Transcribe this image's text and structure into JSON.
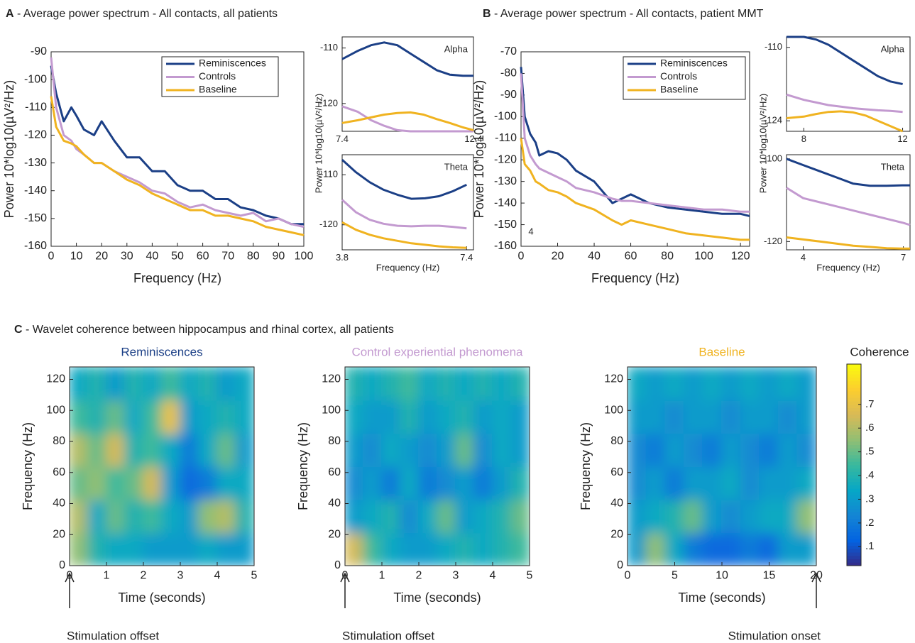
{
  "chart_data": [
    {
      "type": "line",
      "panel": "A",
      "section_title": "- Average power spectrum - All contacts, all patients",
      "xlabel": "Frequency (Hz)",
      "ylabel": "Power 10*log10(µV²/Hz)",
      "xlim": [
        0,
        100
      ],
      "xticks": [
        0,
        10,
        20,
        30,
        40,
        50,
        60,
        70,
        80,
        90,
        100
      ],
      "ylim": [
        -160,
        -90
      ],
      "yticks": [
        -90,
        -100,
        -110,
        -120,
        -130,
        -140,
        -150,
        -160
      ],
      "x": [
        0,
        2,
        5,
        8,
        10,
        13,
        17,
        20,
        25,
        30,
        35,
        40,
        45,
        50,
        55,
        60,
        65,
        70,
        75,
        80,
        85,
        90,
        95,
        100
      ],
      "series": [
        {
          "name": "Reminiscences",
          "color": "#1b3f86",
          "values": [
            -95,
            -105,
            -115,
            -110,
            -113,
            -118,
            -120,
            -115,
            -122,
            -128,
            -128,
            -133,
            -133,
            -138,
            -140,
            -140,
            -143,
            -143,
            -146,
            -147,
            -149,
            -150,
            -152,
            -152
          ]
        },
        {
          "name": "Controls",
          "color": "#c39ad0",
          "values": [
            -92,
            -110,
            -120,
            -122,
            -125,
            -127,
            -130,
            -130,
            -133,
            -135,
            -137,
            -140,
            -141,
            -144,
            -146,
            -145,
            -147,
            -148,
            -149,
            -148,
            -151,
            -150,
            -152,
            -153
          ]
        },
        {
          "name": "Baseline",
          "color": "#f0b320",
          "values": [
            -106,
            -117,
            -122,
            -123,
            -124,
            -127,
            -130,
            -130,
            -133,
            -136,
            -138,
            -141,
            -143,
            -145,
            -147,
            -147,
            -149,
            -149,
            -150,
            -151,
            -153,
            -154,
            -155,
            -156
          ]
        }
      ]
    },
    {
      "type": "line",
      "annotation": "Alpha",
      "ylabel": "Power 10*log10(µV²/Hz)",
      "xlim": [
        7.4,
        12.4
      ],
      "xticks": [
        7.4,
        12.4
      ],
      "ylim": [
        -125,
        -108
      ],
      "yticks": [
        -110,
        -120
      ],
      "x": [
        7.4,
        8,
        8.5,
        9,
        9.5,
        10,
        10.5,
        11,
        11.5,
        12,
        12.4
      ],
      "series": [
        {
          "color": "#1b3f86",
          "values": [
            -112,
            -110.5,
            -109.5,
            -109,
            -109.5,
            -111,
            -112.5,
            -114,
            -114.8,
            -115,
            -115
          ]
        },
        {
          "color": "#c39ad0",
          "values": [
            -120.5,
            -121.5,
            -123,
            -124,
            -124.8,
            -125,
            -125,
            -125,
            -125,
            -125,
            -125
          ]
        },
        {
          "color": "#f0b320",
          "values": [
            -123.5,
            -123,
            -122.5,
            -122,
            -121.7,
            -121.6,
            -122,
            -122.8,
            -123.5,
            -124.3,
            -124.8
          ]
        }
      ]
    },
    {
      "type": "line",
      "annotation": "Theta",
      "xlabel": "Frequency (Hz)",
      "xlim": [
        3.8,
        7.6
      ],
      "xticks": [
        3.8,
        7.4
      ],
      "ylim": [
        -125,
        -106
      ],
      "yticks": [
        -110,
        -120
      ],
      "x": [
        3.8,
        4.2,
        4.6,
        5,
        5.4,
        5.8,
        6.2,
        6.6,
        7,
        7.4
      ],
      "series": [
        {
          "color": "#1b3f86",
          "values": [
            -107,
            -109.5,
            -111.5,
            -113,
            -114,
            -114.8,
            -114.7,
            -114.3,
            -113.3,
            -112
          ]
        },
        {
          "color": "#c39ad0",
          "values": [
            -115,
            -117.5,
            -119,
            -119.8,
            -120.2,
            -120.3,
            -120.2,
            -120.2,
            -120.4,
            -120.7
          ]
        },
        {
          "color": "#f0b320",
          "values": [
            -119.5,
            -121,
            -122,
            -122.7,
            -123.2,
            -123.7,
            -124,
            -124.3,
            -124.5,
            -124.6
          ]
        }
      ]
    },
    {
      "type": "line",
      "panel": "B",
      "section_title": "- Average power spectrum - All contacts, patient MMT",
      "annotation": "4",
      "xlabel": "Frequency (Hz)",
      "ylabel": "Power 10*log10(µV²/Hz)",
      "xlim": [
        0,
        125
      ],
      "xticks": [
        0,
        20,
        40,
        60,
        80,
        100,
        120
      ],
      "ylim": [
        -160,
        -70
      ],
      "yticks": [
        -70,
        -80,
        -90,
        -100,
        -110,
        -120,
        -130,
        -140,
        -150,
        -160
      ],
      "x": [
        0,
        2,
        5,
        8,
        10,
        15,
        20,
        25,
        30,
        40,
        50,
        55,
        60,
        70,
        80,
        90,
        100,
        110,
        120,
        125
      ],
      "series": [
        {
          "name": "Reminiscences",
          "color": "#1b3f86",
          "values": [
            -77,
            -100,
            -108,
            -112,
            -118,
            -116,
            -117,
            -120,
            -125,
            -130,
            -140,
            -138,
            -136,
            -140,
            -142,
            -143,
            -144,
            -145,
            -145,
            -146
          ]
        },
        {
          "name": "Controls",
          "color": "#c39ad0",
          "values": [
            -80,
            -110,
            -118,
            -122,
            -124,
            -126,
            -128,
            -130,
            -133,
            -135,
            -138,
            -139,
            -139,
            -140,
            -141,
            -142,
            -143,
            -143,
            -144,
            -144
          ]
        },
        {
          "name": "Baseline",
          "color": "#f0b320",
          "values": [
            -110,
            -122,
            -125,
            -130,
            -131,
            -134,
            -135,
            -137,
            -140,
            -143,
            -148,
            -150,
            -148,
            -150,
            -152,
            -154,
            -155,
            -156,
            -157,
            -157
          ]
        }
      ]
    },
    {
      "type": "line",
      "annotation": "Alpha",
      "ylabel": "Power 10*log10(µV²/Hz)",
      "xlim": [
        7.3,
        12.3
      ],
      "xticks": [
        8,
        12
      ],
      "ylim": [
        -126,
        -108
      ],
      "yticks": [
        -110,
        -124
      ],
      "x": [
        7.3,
        8,
        8.5,
        9,
        9.5,
        10,
        10.5,
        11,
        11.5,
        12
      ],
      "series": [
        {
          "color": "#1b3f86",
          "values": [
            -108,
            -108,
            -108.5,
            -109.5,
            -111,
            -112.5,
            -114,
            -115.5,
            -116.5,
            -117
          ]
        },
        {
          "color": "#c39ad0",
          "values": [
            -119,
            -120,
            -120.5,
            -121,
            -121.3,
            -121.6,
            -121.8,
            -122,
            -122.1,
            -122.3
          ]
        },
        {
          "color": "#f0b320",
          "values": [
            -123.5,
            -123.2,
            -122.7,
            -122.3,
            -122.2,
            -122.4,
            -123,
            -124,
            -125,
            -126
          ]
        }
      ]
    },
    {
      "type": "line",
      "annotation": "Theta",
      "xlabel": "Frequency (Hz)",
      "xlim": [
        3.5,
        7.2
      ],
      "xticks": [
        4,
        7
      ],
      "ylim": [
        -122,
        -99
      ],
      "yticks": [
        -100,
        -120
      ],
      "x": [
        3.5,
        4,
        4.5,
        5,
        5.5,
        6,
        6.5,
        7,
        7.2
      ],
      "series": [
        {
          "color": "#1b3f86",
          "values": [
            -100,
            -101.5,
            -103,
            -104.5,
            -106,
            -106.5,
            -106.5,
            -106.4,
            -106.4
          ]
        },
        {
          "color": "#c39ad0",
          "values": [
            -107,
            -109.5,
            -110.5,
            -111.5,
            -112.5,
            -113.5,
            -114.5,
            -115.5,
            -116
          ]
        },
        {
          "color": "#f0b320",
          "values": [
            -119,
            -119.5,
            -120,
            -120.5,
            -121,
            -121.3,
            -121.6,
            -121.7,
            -121.7
          ]
        }
      ]
    },
    {
      "type": "heatmap",
      "panel": "C",
      "section_title": "- Wavelet coherence between hippocampus and rhinal cortex, all patients",
      "title": "Reminiscences",
      "title_color": "#1b3f86",
      "xlabel": "Time (seconds)",
      "ylabel": "Frequency (Hz)",
      "xlim": [
        0,
        5
      ],
      "xticks": [
        0,
        1,
        2,
        3,
        4,
        5
      ],
      "ylim": [
        0,
        128
      ],
      "yticks": [
        0,
        20,
        40,
        60,
        80,
        100,
        120
      ],
      "marker": {
        "x": 0,
        "label": "Stimulation offset"
      },
      "z": [
        [
          0.55,
          0.4,
          0.35,
          0.35,
          0.3,
          0.3,
          0.3,
          0.35,
          0.3,
          0.3
        ],
        [
          0.6,
          0.35,
          0.5,
          0.4,
          0.45,
          0.35,
          0.3,
          0.55,
          0.6,
          0.4
        ],
        [
          0.5,
          0.55,
          0.45,
          0.5,
          0.65,
          0.3,
          0.15,
          0.2,
          0.35,
          0.35
        ],
        [
          0.6,
          0.5,
          0.65,
          0.4,
          0.45,
          0.35,
          0.2,
          0.35,
          0.5,
          0.3
        ],
        [
          0.45,
          0.4,
          0.5,
          0.35,
          0.45,
          0.7,
          0.3,
          0.35,
          0.4,
          0.35
        ],
        [
          0.35,
          0.4,
          0.3,
          0.4,
          0.35,
          0.45,
          0.35,
          0.4,
          0.3,
          0.35
        ]
      ]
    },
    {
      "type": "heatmap",
      "title": "Control experiential phenomena",
      "title_color": "#c39ad0",
      "xlabel": "Time (seconds)",
      "ylabel": "Frequency (Hz)",
      "xlim": [
        0,
        5
      ],
      "xticks": [
        0,
        1,
        2,
        3,
        4,
        5
      ],
      "ylim": [
        0,
        128
      ],
      "yticks": [
        0,
        20,
        40,
        60,
        80,
        100,
        120
      ],
      "marker": {
        "x": 0,
        "label": "Stimulation offset"
      },
      "z": [
        [
          0.65,
          0.45,
          0.35,
          0.3,
          0.3,
          0.35,
          0.4,
          0.35,
          0.4,
          0.45
        ],
        [
          0.3,
          0.35,
          0.4,
          0.25,
          0.35,
          0.5,
          0.3,
          0.35,
          0.4,
          0.5
        ],
        [
          0.25,
          0.3,
          0.2,
          0.35,
          0.2,
          0.25,
          0.3,
          0.2,
          0.3,
          0.4
        ],
        [
          0.3,
          0.25,
          0.35,
          0.3,
          0.25,
          0.3,
          0.5,
          0.25,
          0.35,
          0.3
        ],
        [
          0.35,
          0.3,
          0.3,
          0.4,
          0.3,
          0.35,
          0.4,
          0.3,
          0.35,
          0.3
        ],
        [
          0.4,
          0.35,
          0.4,
          0.45,
          0.35,
          0.4,
          0.35,
          0.4,
          0.35,
          0.4
        ]
      ]
    },
    {
      "type": "heatmap",
      "title": "Baseline",
      "title_color": "#f0b320",
      "xlabel": "Time (seconds)",
      "ylabel": "Frequency (Hz)",
      "xlim": [
        0,
        20
      ],
      "xticks": [
        0,
        5,
        10,
        15,
        20
      ],
      "ylim": [
        0,
        128
      ],
      "yticks": [
        0,
        20,
        40,
        60,
        80,
        100,
        120
      ],
      "marker": {
        "x": 20,
        "label": "Stimulation onset"
      },
      "z": [
        [
          0.3,
          0.55,
          0.35,
          0.2,
          0.15,
          0.15,
          0.2,
          0.15,
          0.3,
          0.3
        ],
        [
          0.3,
          0.35,
          0.4,
          0.5,
          0.3,
          0.25,
          0.3,
          0.35,
          0.35,
          0.55
        ],
        [
          0.25,
          0.3,
          0.2,
          0.3,
          0.3,
          0.35,
          0.25,
          0.3,
          0.3,
          0.35
        ],
        [
          0.25,
          0.2,
          0.3,
          0.25,
          0.2,
          0.3,
          0.25,
          0.2,
          0.3,
          0.25
        ],
        [
          0.3,
          0.3,
          0.25,
          0.3,
          0.3,
          0.25,
          0.3,
          0.3,
          0.25,
          0.3
        ],
        [
          0.35,
          0.3,
          0.35,
          0.3,
          0.35,
          0.3,
          0.35,
          0.3,
          0.35,
          0.3
        ]
      ]
    },
    {
      "type": "colorbar",
      "title": "Coherence",
      "ylim": [
        0.02,
        0.87
      ],
      "yticks": [
        {
          "value": 0.1,
          "label": ".1"
        },
        {
          "value": 0.2,
          "label": ".2"
        },
        {
          "value": 0.3,
          "label": ".3"
        },
        {
          "value": 0.4,
          "label": ".4"
        },
        {
          "value": 0.5,
          "label": ".5"
        },
        {
          "value": 0.6,
          "label": ".6"
        },
        {
          "value": 0.7,
          "label": ".7"
        }
      ],
      "colormap": [
        "#352a87",
        "#0363e1",
        "#1485d4",
        "#06a7c6",
        "#38b99e",
        "#92bf73",
        "#d9ba56",
        "#fcce2e",
        "#f9fb0e"
      ]
    }
  ]
}
